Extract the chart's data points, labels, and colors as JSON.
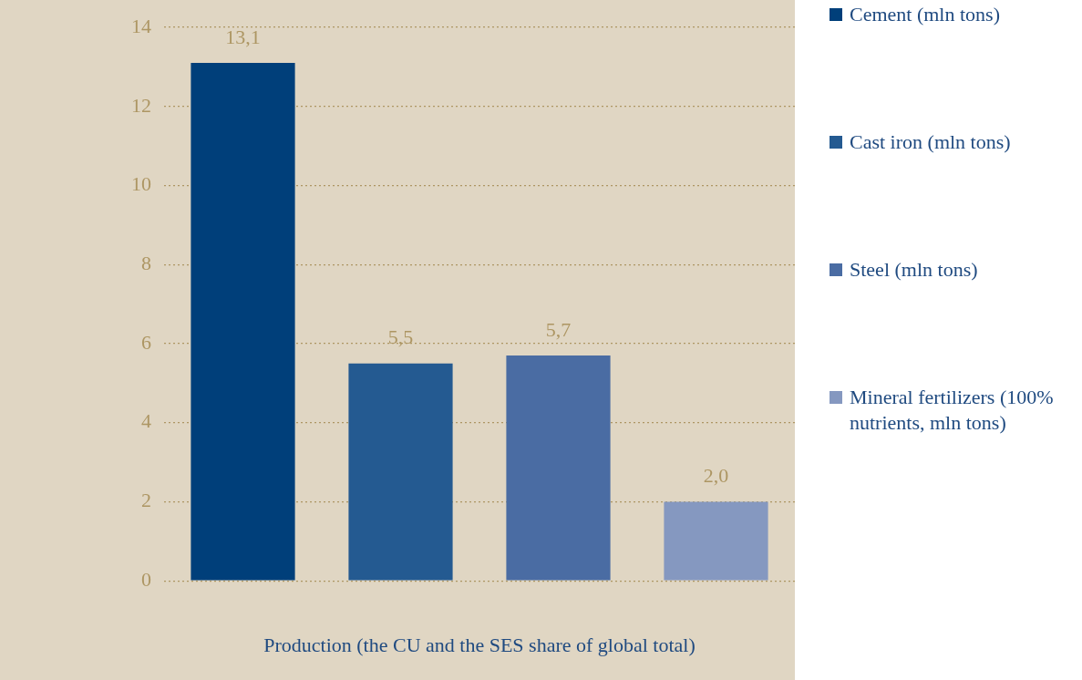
{
  "chart_data": {
    "type": "bar",
    "xlabel": "Production (the CU and the SES share of global total)",
    "categories": [
      null,
      null,
      null,
      null
    ],
    "series": [
      {
        "name": "Cement (mln tons)",
        "color": "#003f7a",
        "values": [
          13.1,
          null,
          null,
          null
        ],
        "value_labels": [
          "13,1",
          null,
          null,
          null
        ]
      },
      {
        "name": "Cast iron (mln tons)",
        "color": "#245a91",
        "values": [
          null,
          5.5,
          null,
          null
        ],
        "value_labels": [
          null,
          "5,5",
          null,
          null
        ]
      },
      {
        "name": "Steel (mln tons)",
        "color": "#4a6ca3",
        "values": [
          null,
          null,
          5.7,
          null
        ],
        "value_labels": [
          null,
          null,
          "5,7",
          null
        ]
      },
      {
        "name": "Mineral fertilizers (100% nutrients, mln tons)",
        "color": "#8598c0",
        "values": [
          null,
          null,
          null,
          2.0
        ],
        "value_labels": [
          null,
          null,
          null,
          "2,0"
        ]
      }
    ],
    "ylim": [
      0,
      14
    ],
    "yticks": [
      0,
      2,
      4,
      6,
      8,
      10,
      12,
      14
    ],
    "grid": "y",
    "legend": "right"
  }
}
